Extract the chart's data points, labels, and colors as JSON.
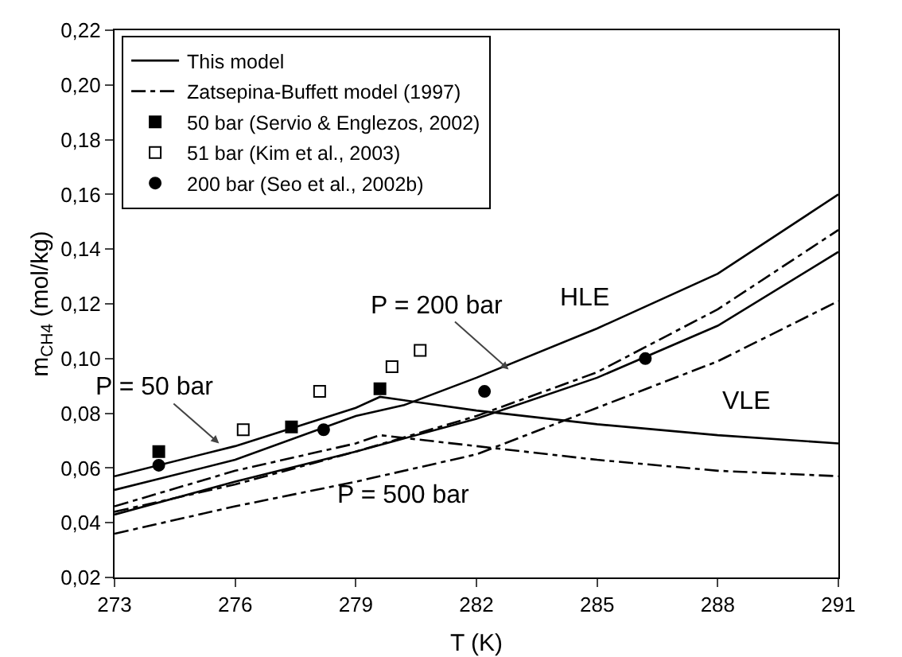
{
  "chart_data": {
    "type": "line",
    "xlabel": "T (K)",
    "ylabel": "m$_{CH4}$ (mol/kg)",
    "xlim": [
      273,
      291
    ],
    "xticks": [
      273,
      276,
      279,
      282,
      285,
      288,
      291
    ],
    "ylim": [
      0.02,
      0.22
    ],
    "yticks": [
      {
        "value": 0.02,
        "label": "0,02"
      },
      {
        "value": 0.04,
        "label": "0,04"
      },
      {
        "value": 0.06,
        "label": "0,06"
      },
      {
        "value": 0.08,
        "label": "0,08"
      },
      {
        "value": 0.1,
        "label": "0,10"
      },
      {
        "value": 0.12,
        "label": "0,12"
      },
      {
        "value": 0.14,
        "label": "0,14"
      },
      {
        "value": 0.16,
        "label": "0,16"
      },
      {
        "value": 0.18,
        "label": "0,18"
      },
      {
        "value": 0.2,
        "label": "0,20"
      },
      {
        "value": 0.22,
        "label": "0,22"
      }
    ],
    "grid": false,
    "legend": "top left",
    "series": [
      {
        "name": "This model",
        "line_style": "solid",
        "color": "#000000",
        "x": [
          273,
          276,
          279,
          279.6,
          282,
          285,
          288,
          291
        ],
        "values": [
          0.057,
          0.068,
          0.082,
          0.086,
          0.081,
          0.076,
          0.072,
          0.069
        ]
      },
      {
        "type": "line",
        "line_style": "solid",
        "color": "#000000",
        "x": [
          273,
          276,
          279,
          280.2,
          282,
          285,
          288,
          291
        ],
        "values": [
          0.052,
          0.063,
          0.079,
          0.083,
          0.093,
          0.111,
          0.131,
          0.16
        ]
      },
      {
        "type": "line",
        "line_style": "solid",
        "color": "#000000",
        "x": [
          273,
          276,
          279,
          282,
          285,
          288,
          291
        ],
        "values": [
          0.043,
          0.055,
          0.066,
          0.078,
          0.093,
          0.112,
          0.139
        ]
      },
      {
        "name": "Zatsepina-Buffett model (1997)",
        "line_style": "dashed",
        "color": "#000000",
        "x": [
          273,
          276,
          279,
          279.6,
          282,
          285,
          288,
          291
        ],
        "values": [
          0.046,
          0.059,
          0.069,
          0.072,
          0.068,
          0.063,
          0.059,
          0.057
        ]
      },
      {
        "type": "line",
        "line_style": "dashed",
        "color": "#000000",
        "x": [
          273,
          276,
          279,
          282,
          285,
          288,
          291
        ],
        "values": [
          0.044,
          0.054,
          0.066,
          0.079,
          0.095,
          0.118,
          0.147
        ]
      },
      {
        "type": "line",
        "line_style": "dashed",
        "color": "#000000",
        "x": [
          273,
          276,
          279,
          282,
          285,
          288,
          291
        ],
        "values": [
          0.036,
          0.046,
          0.055,
          0.065,
          0.082,
          0.099,
          0.121
        ]
      },
      {
        "name": "50 bar (Servio & Englezos, 2002)",
        "type": "scatter",
        "marker": "square",
        "color": "#000000",
        "x": [
          274.1,
          277.4,
          279.6
        ],
        "values": [
          0.066,
          0.075,
          0.089
        ]
      },
      {
        "name": "51 bar (Kim et al., 2003)",
        "type": "scatter",
        "marker": "square",
        "color": "#ffffff",
        "x": [
          276.2,
          278.1,
          279.9,
          280.6
        ],
        "values": [
          0.074,
          0.088,
          0.097,
          0.103
        ]
      },
      {
        "name": "200 bar (Seo et al., 2002b)",
        "type": "scatter",
        "marker": "circle",
        "color": "#000000",
        "x": [
          274.1,
          278.2,
          282.2,
          286.2
        ],
        "values": [
          0.061,
          0.074,
          0.088,
          0.1
        ]
      }
    ],
    "annotations": [
      {
        "text": "P = 50 bar",
        "x": 275.6,
        "y": 0.069
      },
      {
        "text": "P = 200 bar",
        "x": 282.8,
        "y": 0.096
      },
      "HLE",
      "VLE",
      "P = 500 bar"
    ]
  }
}
